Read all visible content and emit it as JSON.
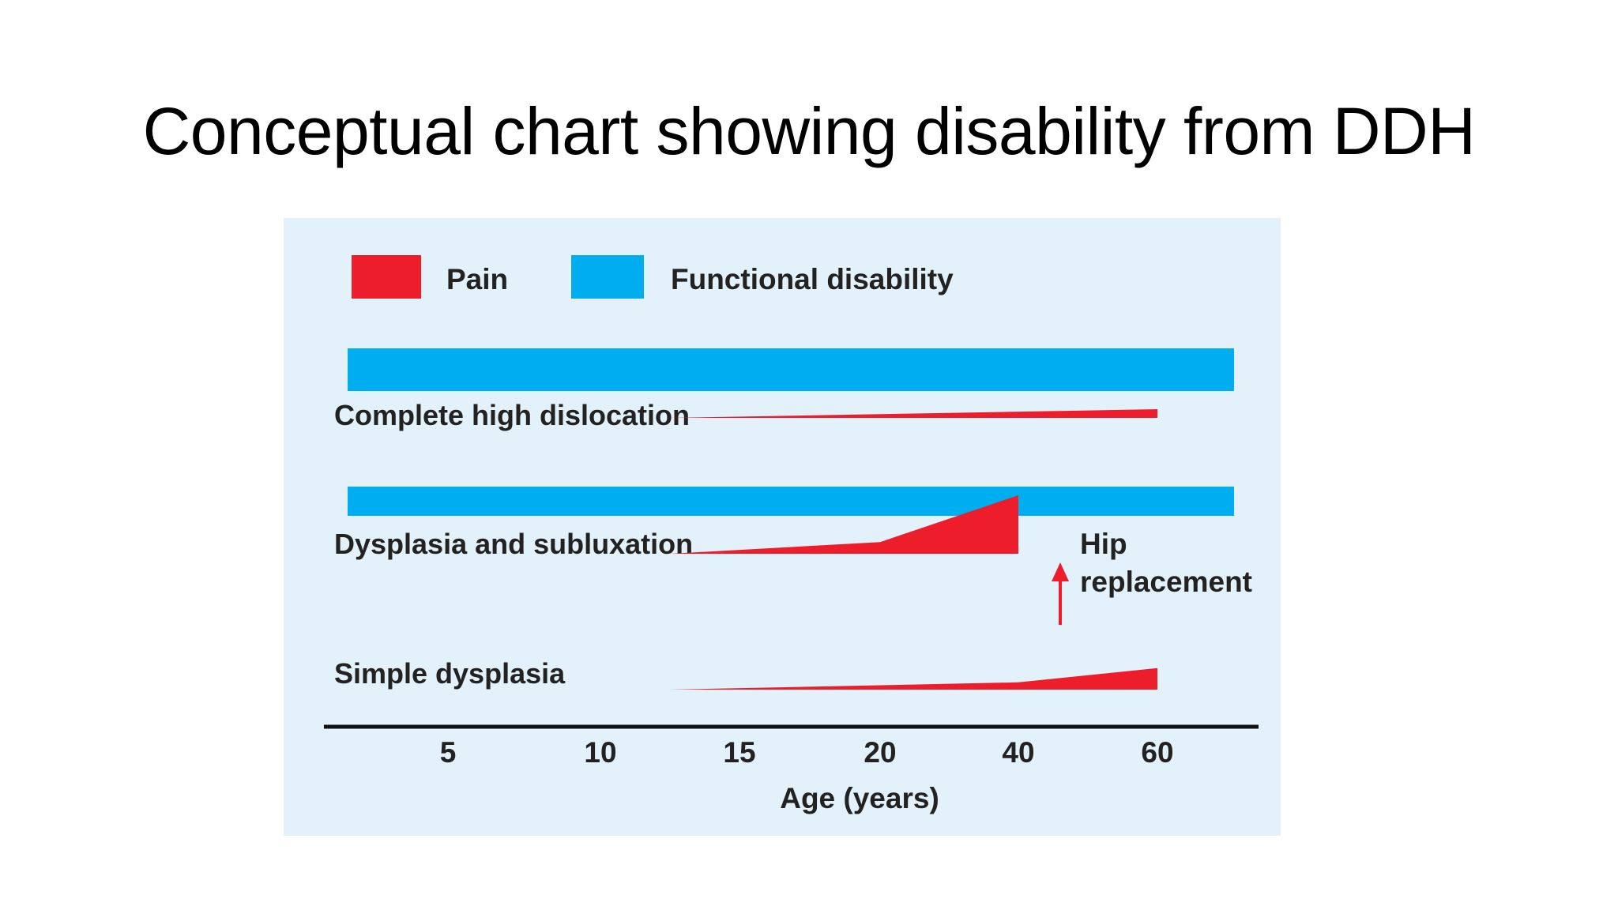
{
  "slide": {
    "title": "Conceptual chart showing disability from DDH"
  },
  "chart_data": {
    "type": "area",
    "title": "",
    "xlabel": "Age (years)",
    "ylabel": "",
    "x_ticks": [
      "5",
      "10",
      "15",
      "20",
      "40",
      "60"
    ],
    "legend": [
      {
        "name": "Pain",
        "color": "#ee1d2c"
      },
      {
        "name": "Functional disability",
        "color": "#00aeef"
      }
    ],
    "legend_placement": "top-left",
    "background_color": "#e2f1fa",
    "rows": [
      {
        "label": "Complete high dislocation",
        "functional_disability": {
          "present": true,
          "from": "0",
          "to": "60"
        },
        "pain": [
          {
            "x": 12.5,
            "level": 0
          },
          {
            "x": 60,
            "level": 0.25
          }
        ]
      },
      {
        "label": "Dysplasia and subluxation",
        "functional_disability": {
          "present": true,
          "from": "0",
          "to": "60"
        },
        "pain": [
          {
            "x": 12.5,
            "level": 0
          },
          {
            "x": 20,
            "level": 0.2
          },
          {
            "x": 40,
            "level": 1
          }
        ],
        "annotation": {
          "text_line1": "Hip",
          "text_line2": "replacement",
          "at": "40"
        }
      },
      {
        "label": "Simple dysplasia",
        "functional_disability": {
          "present": false
        },
        "pain": [
          {
            "x": 12.5,
            "level": 0
          },
          {
            "x": 40,
            "level": 0.22
          },
          {
            "x": 60,
            "level": 0.65
          }
        ]
      }
    ]
  }
}
